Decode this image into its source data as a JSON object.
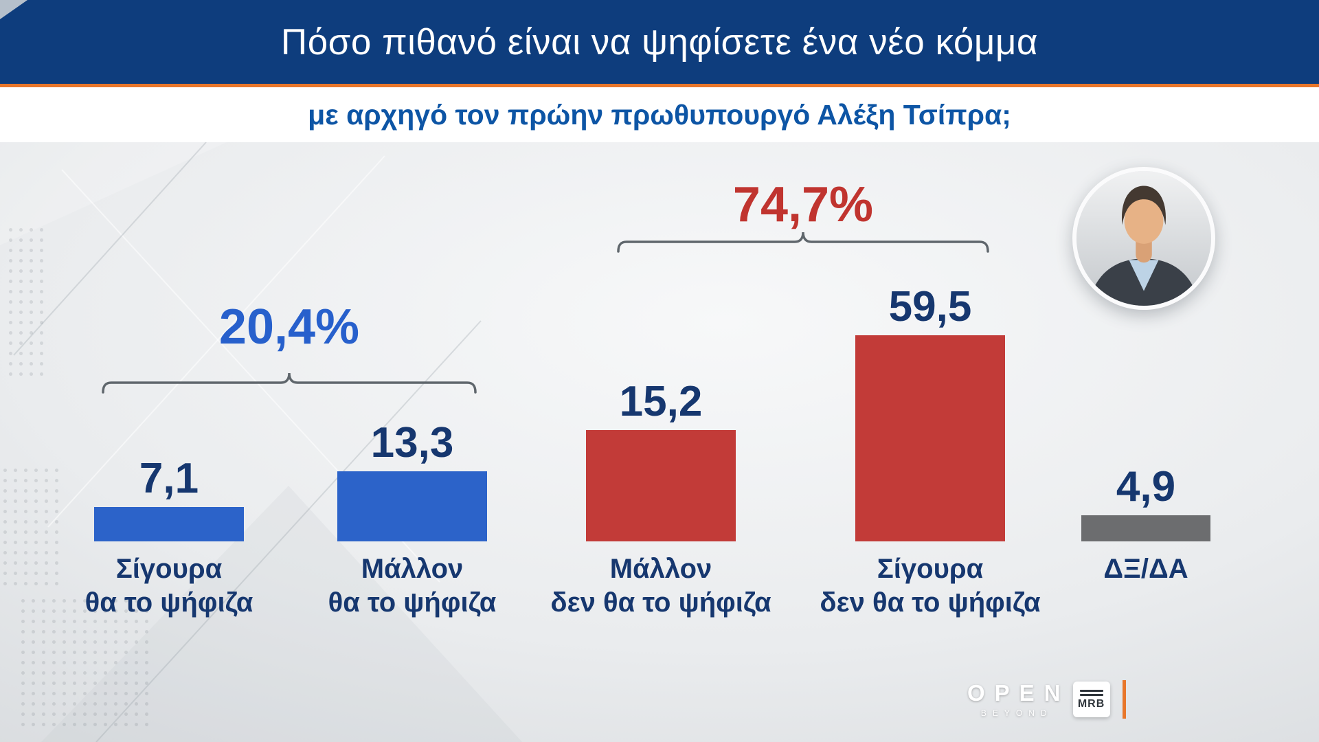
{
  "header": {
    "title": "Πόσο πιθανό είναι να ψηφίσετε ένα νέο κόμμα",
    "subtitle": "με αρχηγό τον πρώην πρωθυπουργό Αλέξη Τσίπρα;",
    "bar_color": "#0e3d7d",
    "accent_color": "#e8762a"
  },
  "chart_data": {
    "type": "bar",
    "title": "Πόσο πιθανό είναι να ψηφίσετε ένα νέο κόμμα με αρχηγό τον πρώην πρωθυπουργό Αλέξη Τσίπρα;",
    "categories": [
      "Σίγουρα θα το ψήφιζα",
      "Μάλλον θα το ψήφιζα",
      "Μάλλον δεν θα το ψήφιζα",
      "Σίγουρα δεν θα το ψήφιζα",
      "ΔΞ/ΔΑ"
    ],
    "values": [
      7.1,
      13.3,
      15.2,
      59.5,
      4.9
    ],
    "unit": "%",
    "ylim": [
      0,
      100
    ],
    "grid": false,
    "legend": "none",
    "value_text_color": "#16376f",
    "category_text_color": "#16376f",
    "bars": [
      {
        "value_label": "7,1",
        "line1": "Σίγουρα",
        "line2": "θα το ψήφιζα",
        "color": "#2c63c9"
      },
      {
        "value_label": "13,3",
        "line1": "Μάλλον",
        "line2": "θα το ψήφιζα",
        "color": "#2c63c9"
      },
      {
        "value_label": "15,2",
        "line1": "Μάλλον",
        "line2": "δεν θα το ψήφιζα",
        "color": "#c23b38"
      },
      {
        "value_label": "59,5",
        "line1": "Σίγουρα",
        "line2": "δεν θα το ψήφιζα",
        "color": "#c23b38"
      },
      {
        "value_label": "4,9",
        "line1": "ΔΞ/ΔΑ",
        "line2": "",
        "color": "#6c6d6f"
      }
    ],
    "groups": [
      {
        "label": "20,4%",
        "value": 20.4,
        "color": "#2760cc",
        "covers": [
          "Σίγουρα θα το ψήφιζα",
          "Μάλλον θα το ψήφιζα"
        ]
      },
      {
        "label": "74,7%",
        "value": 74.7,
        "color": "#c0342f",
        "covers": [
          "Μάλλον δεν θα το ψήφιζα",
          "Σίγουρα δεν θα το ψήφιζα"
        ]
      }
    ]
  },
  "branding": {
    "open": "OPEN",
    "open_sub": "BEYOND",
    "mrb": "MRB",
    "accent_color": "#e8762a"
  }
}
